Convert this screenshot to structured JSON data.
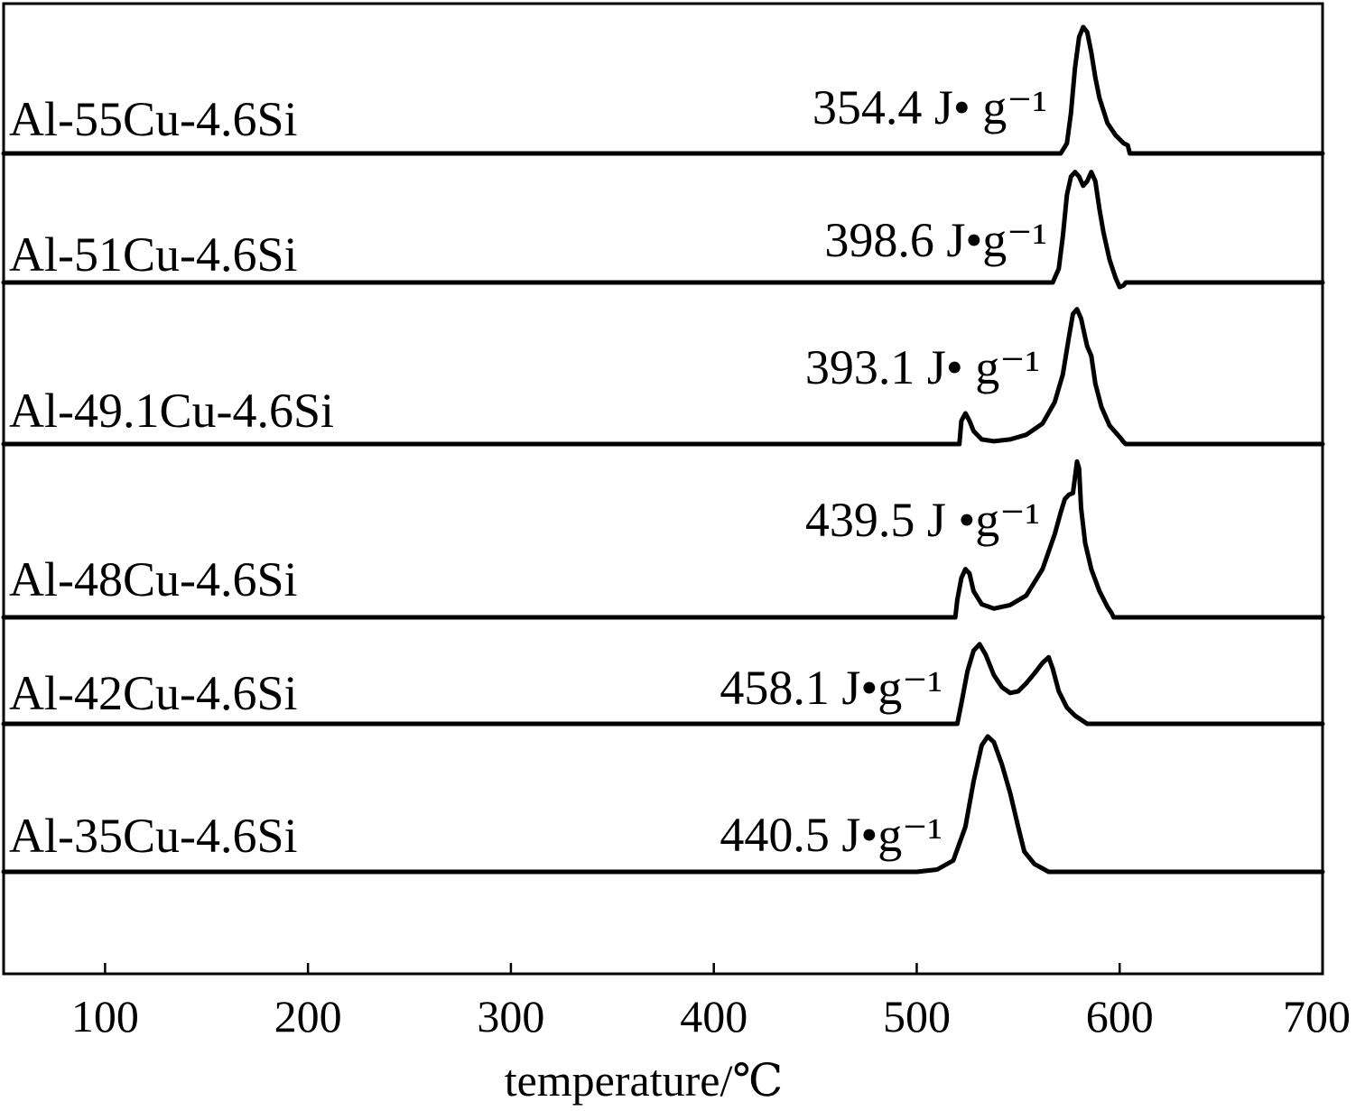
{
  "chart_data": {
    "type": "line",
    "xlabel": "temperature/℃",
    "xlim": [
      50,
      700
    ],
    "xticks": [
      100,
      200,
      300,
      400,
      500,
      600,
      700
    ],
    "ylabel": "",
    "grid": false,
    "legend": "none",
    "line_color": "#000000",
    "series": [
      {
        "name": "Al-55Cu-4.6Si",
        "annotation": "354.4 J• g⁻¹",
        "points": [
          [
            50,
            0
          ],
          [
            571,
            0
          ],
          [
            574,
            0.1
          ],
          [
            576,
            0.4
          ],
          [
            578,
            0.85
          ],
          [
            580,
            1.15
          ],
          [
            582,
            1.25
          ],
          [
            584,
            1.2
          ],
          [
            586,
            1.0
          ],
          [
            588,
            0.75
          ],
          [
            590,
            0.55
          ],
          [
            594,
            0.3
          ],
          [
            598,
            0.18
          ],
          [
            602,
            0.1
          ],
          [
            604,
            0.08
          ],
          [
            605,
            0
          ],
          [
            700,
            0
          ]
        ]
      },
      {
        "name": "Al-51Cu-4.6Si",
        "annotation": "398.6 J•g⁻¹",
        "points": [
          [
            50,
            0
          ],
          [
            567,
            0
          ],
          [
            570,
            0.15
          ],
          [
            572,
            0.5
          ],
          [
            574,
            0.95
          ],
          [
            576,
            1.15
          ],
          [
            578,
            1.2
          ],
          [
            580,
            1.15
          ],
          [
            582,
            1.05
          ],
          [
            584,
            1.1
          ],
          [
            586,
            1.2
          ],
          [
            588,
            1.1
          ],
          [
            590,
            0.8
          ],
          [
            592,
            0.55
          ],
          [
            595,
            0.25
          ],
          [
            598,
            0.05
          ],
          [
            600,
            -0.05
          ],
          [
            602,
            -0.03
          ],
          [
            603,
            0
          ],
          [
            700,
            0
          ]
        ]
      },
      {
        "name": "Al-49.1Cu-4.6Si",
        "annotation": "393.1 J• g⁻¹",
        "points": [
          [
            50,
            0
          ],
          [
            521,
            0
          ],
          [
            522,
            0.25
          ],
          [
            524,
            0.33
          ],
          [
            526,
            0.25
          ],
          [
            528,
            0.14
          ],
          [
            532,
            0.05
          ],
          [
            538,
            0.03
          ],
          [
            546,
            0.05
          ],
          [
            554,
            0.1
          ],
          [
            562,
            0.22
          ],
          [
            568,
            0.45
          ],
          [
            572,
            0.75
          ],
          [
            575,
            1.15
          ],
          [
            577,
            1.4
          ],
          [
            579,
            1.45
          ],
          [
            581,
            1.35
          ],
          [
            583,
            1.15
          ],
          [
            584,
            1.05
          ],
          [
            586,
            0.95
          ],
          [
            588,
            0.65
          ],
          [
            591,
            0.4
          ],
          [
            595,
            0.2
          ],
          [
            599,
            0.1
          ],
          [
            601,
            0.05
          ],
          [
            602,
            0.02
          ],
          [
            603,
            0
          ],
          [
            700,
            0
          ]
        ]
      },
      {
        "name": "Al-48Cu-4.6Si",
        "annotation": "439.5 J •g⁻¹",
        "points": [
          [
            50,
            0
          ],
          [
            519,
            0
          ],
          [
            520,
            0.2
          ],
          [
            522,
            0.45
          ],
          [
            524,
            0.55
          ],
          [
            526,
            0.5
          ],
          [
            528,
            0.3
          ],
          [
            532,
            0.15
          ],
          [
            538,
            0.1
          ],
          [
            546,
            0.14
          ],
          [
            554,
            0.25
          ],
          [
            562,
            0.55
          ],
          [
            568,
            0.95
          ],
          [
            571,
            1.2
          ],
          [
            573,
            1.35
          ],
          [
            575,
            1.4
          ],
          [
            577,
            1.42
          ],
          [
            579,
            1.78
          ],
          [
            580,
            1.7
          ],
          [
            581,
            1.25
          ],
          [
            583,
            0.85
          ],
          [
            586,
            0.55
          ],
          [
            590,
            0.3
          ],
          [
            594,
            0.12
          ],
          [
            596,
            0.05
          ],
          [
            597,
            0
          ],
          [
            700,
            0
          ]
        ]
      },
      {
        "name": "Al-42Cu-4.6Si",
        "annotation": "458.1 J•g⁻¹",
        "points": [
          [
            50,
            0
          ],
          [
            520,
            0
          ],
          [
            522,
            0.25
          ],
          [
            525,
            0.65
          ],
          [
            528,
            0.9
          ],
          [
            531,
            0.98
          ],
          [
            534,
            0.85
          ],
          [
            538,
            0.6
          ],
          [
            542,
            0.45
          ],
          [
            546,
            0.38
          ],
          [
            550,
            0.4
          ],
          [
            554,
            0.5
          ],
          [
            558,
            0.62
          ],
          [
            562,
            0.75
          ],
          [
            565,
            0.82
          ],
          [
            567,
            0.68
          ],
          [
            570,
            0.4
          ],
          [
            574,
            0.2
          ],
          [
            578,
            0.1
          ],
          [
            584,
            0
          ],
          [
            700,
            0
          ]
        ]
      },
      {
        "name": "Al-35Cu-4.6Si",
        "annotation": "440.5 J•g⁻¹",
        "points": [
          [
            50,
            0
          ],
          [
            500,
            0
          ],
          [
            510,
            0.02
          ],
          [
            518,
            0.1
          ],
          [
            524,
            0.4
          ],
          [
            528,
            0.8
          ],
          [
            532,
            1.12
          ],
          [
            535,
            1.2
          ],
          [
            538,
            1.15
          ],
          [
            542,
            0.95
          ],
          [
            546,
            0.7
          ],
          [
            550,
            0.4
          ],
          [
            553,
            0.18
          ],
          [
            558,
            0.07
          ],
          [
            565,
            0
          ],
          [
            700,
            0
          ]
        ]
      }
    ]
  }
}
